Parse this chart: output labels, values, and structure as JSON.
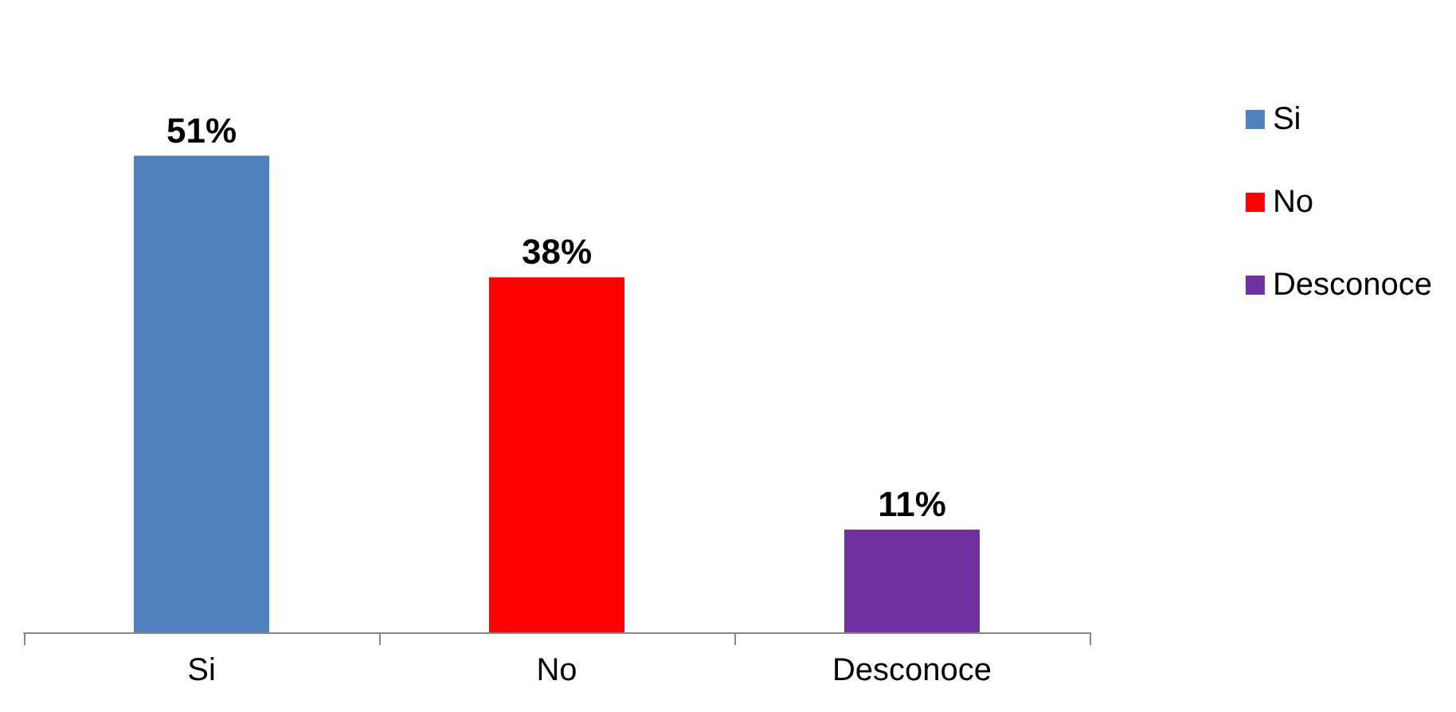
{
  "chart_data": {
    "type": "bar",
    "categories": [
      "Si",
      "No",
      "Desconoce"
    ],
    "legend": "right",
    "series": [
      {
        "name": "Si",
        "color": "#4f81bd",
        "values": [
          51,
          null,
          null
        ],
        "value_labels": [
          "51%",
          null,
          null
        ]
      },
      {
        "name": "No",
        "color": "#ff0000",
        "values": [
          null,
          38,
          null
        ],
        "value_labels": [
          null,
          "38%",
          null
        ]
      },
      {
        "name": "Desconoce",
        "color": "#7030a0",
        "values": [
          null,
          null,
          11
        ],
        "value_labels": [
          null,
          null,
          "11%"
        ]
      }
    ]
  }
}
